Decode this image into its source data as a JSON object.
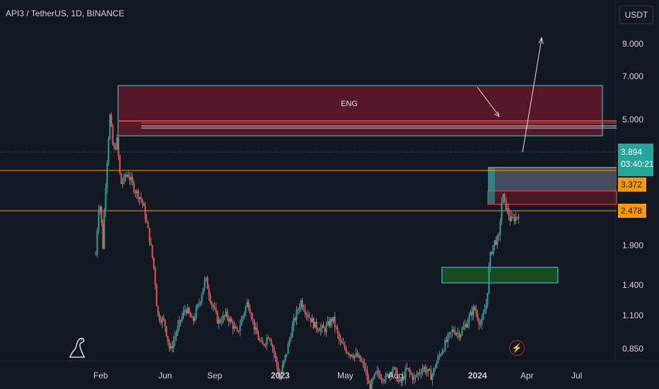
{
  "header": {
    "symbol": "API3 / TetherUS, 1D, BINANCE",
    "currency_button": "USDT"
  },
  "price_axis": {
    "ticks": [
      "9.000",
      "7.000",
      "5.000",
      "1.900",
      "1.400",
      "1.100",
      "0.850"
    ],
    "current_price": "3.894",
    "countdown": "03:40:21",
    "level_labels": [
      "3.372",
      "2.478"
    ]
  },
  "annotations": {
    "zone_label": "ENG"
  },
  "colors": {
    "background": "#131722",
    "up": "#26a69a",
    "down": "#ef5350",
    "level": "#ff9800",
    "resistance_zone": "#8b1a2e",
    "support_zone": "#1b5e20"
  },
  "icons": {
    "logo": "dinosaur-icon",
    "flash": "lightning-icon"
  },
  "chart_data": {
    "type": "candlestick",
    "title": "API3 / TetherUS, 1D, BINANCE",
    "xlabel": "",
    "ylabel": "",
    "y_scale": "log",
    "ylim": [
      0.78,
      11.8
    ],
    "x_ticks": [
      "Feb",
      "Jun",
      "Sep",
      "2023",
      "May",
      "Aug",
      "2024",
      "Apr",
      "Jul"
    ],
    "y_ticks": [
      9.0,
      7.0,
      5.0,
      1.9,
      1.4,
      1.1,
      0.85
    ],
    "last_price": 3.894,
    "horizontal_levels": [
      3.372,
      2.478
    ],
    "grid": false,
    "legend": "none"
  }
}
